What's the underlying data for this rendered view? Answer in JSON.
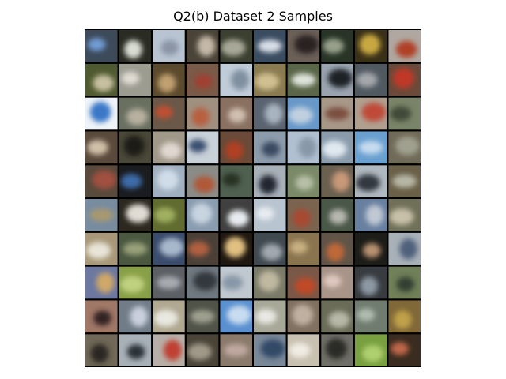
{
  "figure": {
    "title": "Q2(b) Dataset 2 Samples"
  },
  "sample_grid": {
    "rows": 10,
    "cols": 10,
    "cells": [
      [
        {
          "bg": "#3d4a5a",
          "fg": "#6f9bd4"
        },
        {
          "bg": "#2a2c24",
          "fg": "#d9ddd2"
        },
        {
          "bg": "#b8c4d2",
          "fg": "#8a94a4"
        },
        {
          "bg": "#4a4438",
          "fg": "#c4b8a8"
        },
        {
          "bg": "#3c4030",
          "fg": "#a8a898"
        },
        {
          "bg": "#3a4c60",
          "fg": "#d8dee6"
        },
        {
          "bg": "#6a6058",
          "fg": "#2c2420"
        },
        {
          "bg": "#283426",
          "fg": "#98a08c"
        },
        {
          "bg": "#3a3018",
          "fg": "#c8a840"
        },
        {
          "bg": "#b0a8a0",
          "fg": "#b04028"
        }
      ],
      [
        {
          "bg": "#505a30",
          "fg": "#c8c0a0"
        },
        {
          "bg": "#9c9c90",
          "fg": "#e0dcd4"
        },
        {
          "bg": "#5c4a2c",
          "fg": "#c0a070"
        },
        {
          "bg": "#7a5a48",
          "fg": "#a04030"
        },
        {
          "bg": "#c0ccd8",
          "fg": "#8090a0"
        },
        {
          "bg": "#8a7a50",
          "fg": "#d0c090"
        },
        {
          "bg": "#5a6648",
          "fg": "#e0e4dc"
        },
        {
          "bg": "#9aa4b0",
          "fg": "#1c2028"
        },
        {
          "bg": "#505860",
          "fg": "#a4a8ac"
        },
        {
          "bg": "#6a4a3a",
          "fg": "#c03828"
        }
      ],
      [
        {
          "bg": "#f0f4f8",
          "fg": "#3a78c8"
        },
        {
          "bg": "#6a7060",
          "fg": "#b8b0a0"
        },
        {
          "bg": "#6a5848",
          "fg": "#c05030"
        },
        {
          "bg": "#a09080",
          "fg": "#b86040"
        },
        {
          "bg": "#8a7060",
          "fg": "#d0c0b0"
        },
        {
          "bg": "#5a6470",
          "fg": "#a8b4c0"
        },
        {
          "bg": "#6898c8",
          "fg": "#c0d0e0"
        },
        {
          "bg": "#a89888",
          "fg": "#7a5040"
        },
        {
          "bg": "#b0a090",
          "fg": "#c04838"
        },
        {
          "bg": "#7a8468",
          "fg": "#404838"
        }
      ],
      [
        {
          "bg": "#5a4a3c",
          "fg": "#d0c0a8"
        },
        {
          "bg": "#4a4838",
          "fg": "#1c1c18"
        },
        {
          "bg": "#a09888",
          "fg": "#e0d8d0"
        },
        {
          "bg": "#c8d0d8",
          "fg": "#3a5070"
        },
        {
          "bg": "#6a4a38",
          "fg": "#b04020"
        },
        {
          "bg": "#8c9cac",
          "fg": "#3a4a60"
        },
        {
          "bg": "#b0c0d0",
          "fg": "#8898a8"
        },
        {
          "bg": "#8a9cac",
          "fg": "#e0e8f0"
        },
        {
          "bg": "#6aa0d0",
          "fg": "#c8dcf0"
        },
        {
          "bg": "#706a58",
          "fg": "#a0a090"
        }
      ],
      [
        {
          "bg": "#584a3c",
          "fg": "#a05040"
        },
        {
          "bg": "#1a1c20",
          "fg": "#3c6ca8"
        },
        {
          "bg": "#a0b0c0",
          "fg": "#d0dce8"
        },
        {
          "bg": "#8a8c88",
          "fg": "#b05838"
        },
        {
          "bg": "#506050",
          "fg": "#283020"
        },
        {
          "bg": "#a8b0b8",
          "fg": "#202830"
        },
        {
          "bg": "#7a8a68",
          "fg": "#b8c0a8"
        },
        {
          "bg": "#6a6050",
          "fg": "#c89878"
        },
        {
          "bg": "#b0b8c0",
          "fg": "#303840"
        },
        {
          "bg": "#6a6048",
          "fg": "#b8b8a8"
        }
      ],
      [
        {
          "bg": "#788ca0",
          "fg": "#a89870"
        },
        {
          "bg": "#2c2820",
          "fg": "#e0dcd4"
        },
        {
          "bg": "#606c30",
          "fg": "#a0b060"
        },
        {
          "bg": "#8a9cb0",
          "fg": "#c8d4e0"
        },
        {
          "bg": "#404040",
          "fg": "#e8ecf0"
        },
        {
          "bg": "#b8c4d0",
          "fg": "#e8ecf0"
        },
        {
          "bg": "#7a6450",
          "fg": "#a84830"
        },
        {
          "bg": "#4a5848",
          "fg": "#b8b8b0"
        },
        {
          "bg": "#6880a0",
          "fg": "#c0c8d4"
        },
        {
          "bg": "#707058",
          "fg": "#c8c0a8"
        }
      ],
      [
        {
          "bg": "#a89878",
          "fg": "#e8e4d8"
        },
        {
          "bg": "#4a5840",
          "fg": "#98a078"
        },
        {
          "bg": "#3a4c6c",
          "fg": "#a8b8cc"
        },
        {
          "bg": "#4a4038",
          "fg": "#b06040"
        },
        {
          "bg": "#201810",
          "fg": "#e0c080"
        },
        {
          "bg": "#404850",
          "fg": "#a0a8b0"
        },
        {
          "bg": "#8a7450",
          "fg": "#c8b080"
        },
        {
          "bg": "#605448",
          "fg": "#c06838"
        },
        {
          "bg": "#1c1c18",
          "fg": "#b89070"
        },
        {
          "bg": "#a8b0b8",
          "fg": "#50607c"
        }
      ],
      [
        {
          "bg": "#6c78a0",
          "fg": "#d0a868"
        },
        {
          "bg": "#88a048",
          "fg": "#c0d080"
        },
        {
          "bg": "#5c6064",
          "fg": "#a8acb0"
        },
        {
          "bg": "#707880",
          "fg": "#30383c"
        },
        {
          "bg": "#c0c8d0",
          "fg": "#8898a8"
        },
        {
          "bg": "#7a7a68",
          "fg": "#c0b8a0"
        },
        {
          "bg": "#7a5848",
          "fg": "#c04828"
        },
        {
          "bg": "#a89488",
          "fg": "#e0c8c0"
        },
        {
          "bg": "#383c40",
          "fg": "#8c98a4"
        },
        {
          "bg": "#708058",
          "fg": "#304030"
        }
      ],
      [
        {
          "bg": "#a07868",
          "fg": "#302420"
        },
        {
          "bg": "#707c88",
          "fg": "#c8d0dc"
        },
        {
          "bg": "#b0a890",
          "fg": "#e8e8e0"
        },
        {
          "bg": "#505448",
          "fg": "#a0a090"
        },
        {
          "bg": "#5a90d0",
          "fg": "#c8dcf0"
        },
        {
          "bg": "#a8a898",
          "fg": "#e8e8e4"
        },
        {
          "bg": "#807060",
          "fg": "#c0b0a0"
        },
        {
          "bg": "#6a6c58",
          "fg": "#b8b8a8"
        },
        {
          "bg": "#707c70",
          "fg": "#b0bcb0"
        },
        {
          "bg": "#806838",
          "fg": "#c0a048"
        }
      ],
      [
        {
          "bg": "#706858",
          "fg": "#2c2820"
        },
        {
          "bg": "#a8b0b8",
          "fg": "#2c3038"
        },
        {
          "bg": "#b8b0a8",
          "fg": "#c04030"
        },
        {
          "bg": "#4a4438",
          "fg": "#a09888"
        },
        {
          "bg": "#8a7a6c",
          "fg": "#c0a8a0"
        },
        {
          "bg": "#7a8898",
          "fg": "#304868"
        },
        {
          "bg": "#c8c0b0",
          "fg": "#f0ece4"
        },
        {
          "bg": "#707068",
          "fg": "#2c2c28"
        },
        {
          "bg": "#78a040",
          "fg": "#b0d070"
        },
        {
          "bg": "#3a2c20",
          "fg": "#c06848"
        }
      ]
    ]
  }
}
